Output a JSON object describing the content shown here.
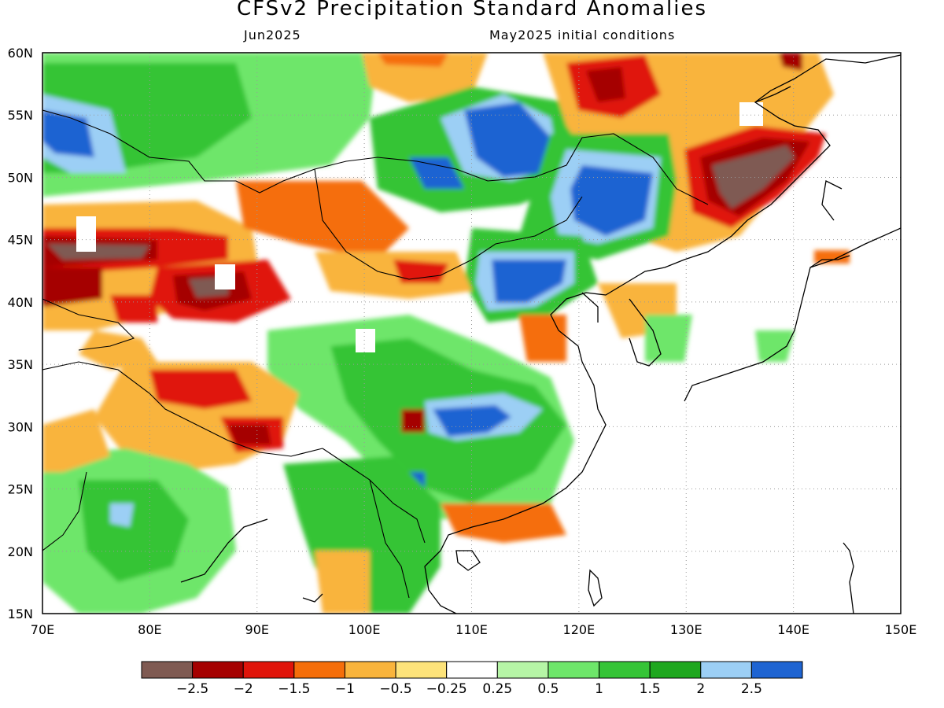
{
  "header": {
    "title": "CFSv2 Precipitation Standard Anomalies",
    "valid_month": "Jun2025",
    "init_conditions": "May2025 initial conditions"
  },
  "map": {
    "lon_labels": [
      "70E",
      "80E",
      "90E",
      "100E",
      "110E",
      "120E",
      "130E",
      "140E",
      "150E"
    ],
    "lat_labels": [
      "60N",
      "55N",
      "50N",
      "45N",
      "40N",
      "35N",
      "30N",
      "25N",
      "20N",
      "15N"
    ],
    "lon_range": [
      70,
      150
    ],
    "lat_range": [
      15,
      60
    ],
    "grid": "dotted"
  },
  "colorbar": {
    "colors": [
      "#7f5a52",
      "#a50000",
      "#e0140a",
      "#f56e0a",
      "#f9b43c",
      "#fde37a",
      "#ffffff",
      "#b6f5a6",
      "#6ee66a",
      "#35c436",
      "#1ea71e",
      "#9ccff5",
      "#1e64d2"
    ],
    "labels": [
      "−2.5",
      "−2",
      "−1.5",
      "−1",
      "−0.5",
      "−0.25",
      "0.25",
      "0.5",
      "1",
      "1.5",
      "2",
      "2.5"
    ]
  },
  "legend": {
    "colors": {
      "very_dry": "#7f5a52",
      "dry": "#e0140a",
      "slightly_dry": "#f9b43c",
      "neutral": "#ffffff",
      "slightly_wet": "#6ee66a",
      "wet": "#1ea71e",
      "very_wet": "#1e64d2"
    }
  }
}
